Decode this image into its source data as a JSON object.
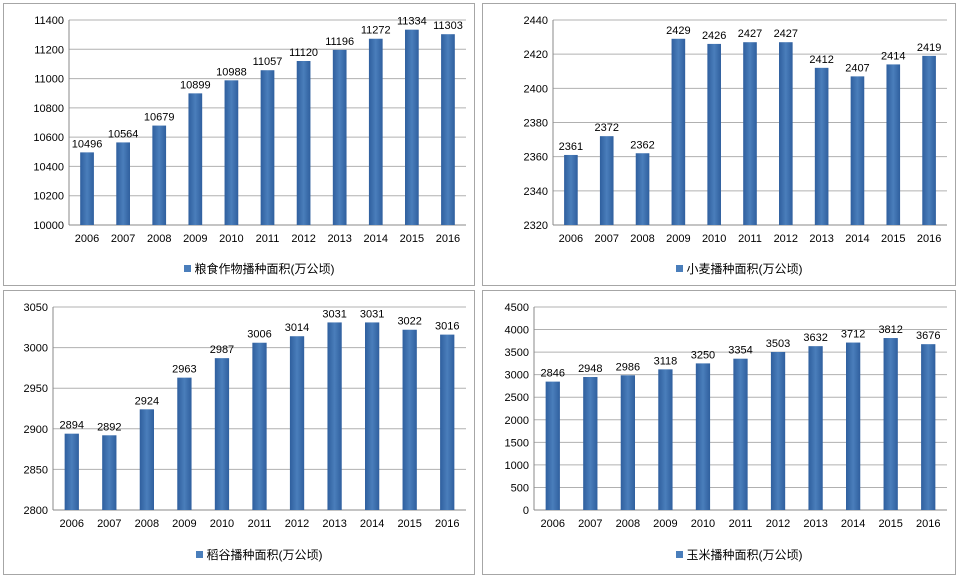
{
  "chart_data": [
    {
      "type": "bar",
      "categories": [
        "2006",
        "2007",
        "2008",
        "2009",
        "2010",
        "2011",
        "2012",
        "2013",
        "2014",
        "2015",
        "2016"
      ],
      "series": [
        {
          "name": "粮食作物播种面积(万公顷)",
          "values": [
            10496,
            10564,
            10679,
            10899,
            10988,
            11057,
            11120,
            11196,
            11272,
            11334,
            11303
          ]
        }
      ],
      "ylim": [
        10000,
        11400
      ],
      "yticks": [
        10000,
        10200,
        10400,
        10600,
        10800,
        11000,
        11200,
        11400
      ],
      "grid": true,
      "legend": "bottom",
      "color": "#4a7ebb"
    },
    {
      "type": "bar",
      "categories": [
        "2006",
        "2007",
        "2008",
        "2009",
        "2010",
        "2011",
        "2012",
        "2013",
        "2014",
        "2015",
        "2016"
      ],
      "series": [
        {
          "name": "小麦播种面积(万公顷)",
          "values": [
            2361,
            2372,
            2362,
            2429,
            2426,
            2427,
            2427,
            2412,
            2407,
            2414,
            2419
          ]
        }
      ],
      "ylim": [
        2320,
        2440
      ],
      "yticks": [
        2320,
        2340,
        2360,
        2380,
        2400,
        2420,
        2440
      ],
      "grid": true,
      "legend": "bottom",
      "color": "#4a7ebb"
    },
    {
      "type": "bar",
      "categories": [
        "2006",
        "2007",
        "2008",
        "2009",
        "2010",
        "2011",
        "2012",
        "2013",
        "2014",
        "2015",
        "2016"
      ],
      "series": [
        {
          "name": "稻谷播种面积(万公顷)",
          "values": [
            2894,
            2892,
            2924,
            2963,
            2987,
            3006,
            3014,
            3031,
            3031,
            3022,
            3016
          ]
        }
      ],
      "ylim": [
        2800,
        3050
      ],
      "yticks": [
        2800,
        2850,
        2900,
        2950,
        3000,
        3050
      ],
      "grid": true,
      "legend": "bottom",
      "color": "#4a7ebb"
    },
    {
      "type": "bar",
      "categories": [
        "2006",
        "2007",
        "2008",
        "2009",
        "2010",
        "2011",
        "2012",
        "2013",
        "2014",
        "2015",
        "2016"
      ],
      "series": [
        {
          "name": "玉米播种面积(万公顷)",
          "values": [
            2846,
            2948,
            2986,
            3118,
            3250,
            3354,
            3503,
            3632,
            3712,
            3812,
            3676
          ]
        }
      ],
      "ylim": [
        0,
        4500
      ],
      "yticks": [
        0,
        500,
        1000,
        1500,
        2000,
        2500,
        3000,
        3500,
        4000,
        4500
      ],
      "grid": true,
      "legend": "bottom",
      "color": "#4a7ebb"
    }
  ]
}
